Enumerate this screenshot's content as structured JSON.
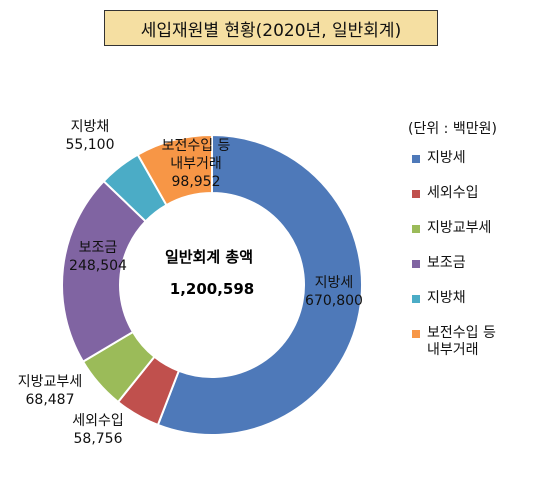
{
  "title": "세입재원별 현황(2020년, 일반회계)",
  "legend_unit": "(단위 : 백만원)",
  "center": {
    "line1": "일반회계 총액",
    "line2": "1,200,598"
  },
  "chart_data": {
    "type": "pie",
    "title": "세입재원별 현황(2020년, 일반회계)",
    "total": 1200598,
    "unit": "백만원",
    "donut": true,
    "legend_position": "right",
    "series": [
      {
        "name": "지방세",
        "value": 670800,
        "label_value": "670,800",
        "color": "#4e79b9"
      },
      {
        "name": "세외수입",
        "value": 58756,
        "label_value": "58,756",
        "color": "#c0504d"
      },
      {
        "name": "지방교부세",
        "value": 68487,
        "label_value": "68,487",
        "color": "#9bbb59"
      },
      {
        "name": "보조금",
        "value": 248504,
        "label_value": "248,504",
        "color": "#8064a2"
      },
      {
        "name": "지방채",
        "value": 55100,
        "label_value": "55,100",
        "color": "#4bacc6"
      },
      {
        "name": "보전수입 등\n내부거래",
        "value": 98952,
        "label_value": "98,952",
        "color": "#f79646"
      }
    ]
  }
}
